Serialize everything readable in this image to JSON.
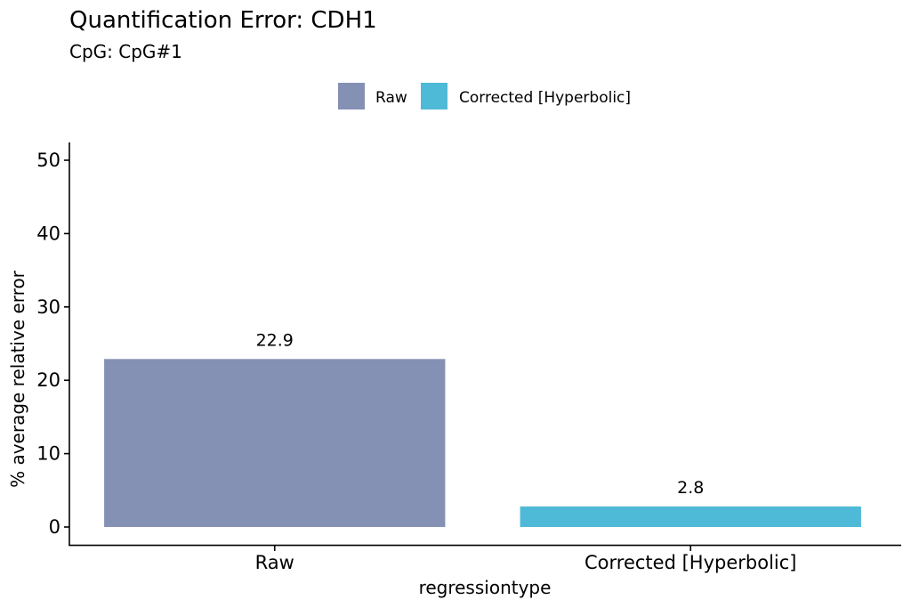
{
  "chart_data": {
    "type": "bar",
    "title": "Quantification Error: CDH1",
    "subtitle": "CpG: CpG#1",
    "xlabel": "regressiontype",
    "ylabel": "% average relative error",
    "categories": [
      "Raw",
      "Corrected [Hyperbolic]"
    ],
    "values": [
      22.9,
      2.8
    ],
    "value_labels": [
      "22.9",
      "2.8"
    ],
    "colors": [
      "#8591b4",
      "#4fbad7"
    ],
    "ylim": [
      0,
      50
    ],
    "yticks": [
      0,
      10,
      20,
      30,
      40,
      50
    ],
    "grid": false,
    "legend": {
      "position": "top",
      "entries": [
        "Raw",
        "Corrected [Hyperbolic]"
      ]
    }
  }
}
